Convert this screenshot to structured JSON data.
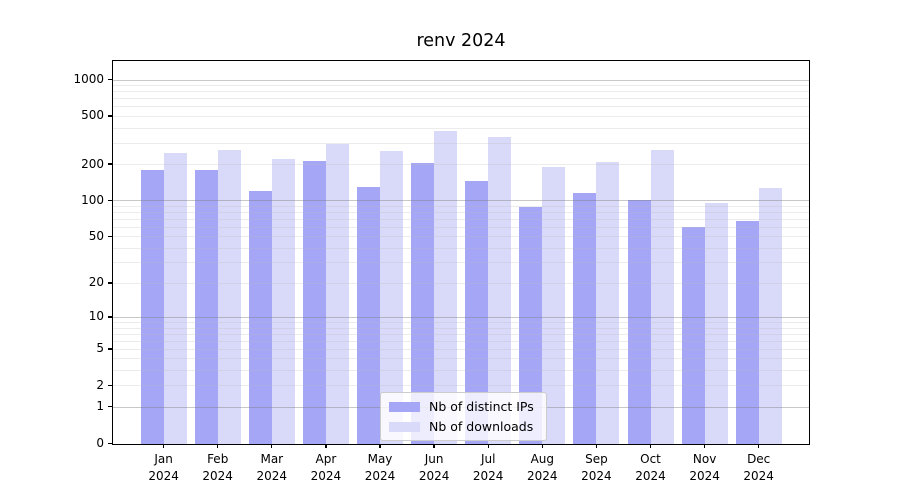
{
  "chart_data": {
    "type": "bar",
    "title": "renv 2024",
    "categories": [
      "Jan 2024",
      "Feb 2024",
      "Mar 2024",
      "Apr 2024",
      "May 2024",
      "Jun 2024",
      "Jul 2024",
      "Aug 2024",
      "Sep 2024",
      "Oct 2024",
      "Nov 2024",
      "Dec 2024"
    ],
    "series": [
      {
        "name": "Nb of distinct IPs",
        "color": "#a6a6f6",
        "values": [
          181,
          181,
          121,
          215,
          131,
          208,
          148,
          89,
          116,
          102,
          61,
          68
        ]
      },
      {
        "name": "Nb of downloads",
        "color": "#d9d9f9",
        "values": [
          250,
          264,
          223,
          299,
          260,
          378,
          340,
          191,
          213,
          265,
          97,
          129
        ]
      }
    ],
    "xlabel": "",
    "ylabel": "",
    "yscale": "log1p",
    "y_ticks": [
      0,
      1,
      2,
      5,
      10,
      20,
      50,
      100,
      200,
      500,
      1000
    ],
    "ylim": [
      0,
      1450
    ],
    "grid": "horizontal-major-and-minor",
    "legend_position": "lower-center-inside"
  }
}
